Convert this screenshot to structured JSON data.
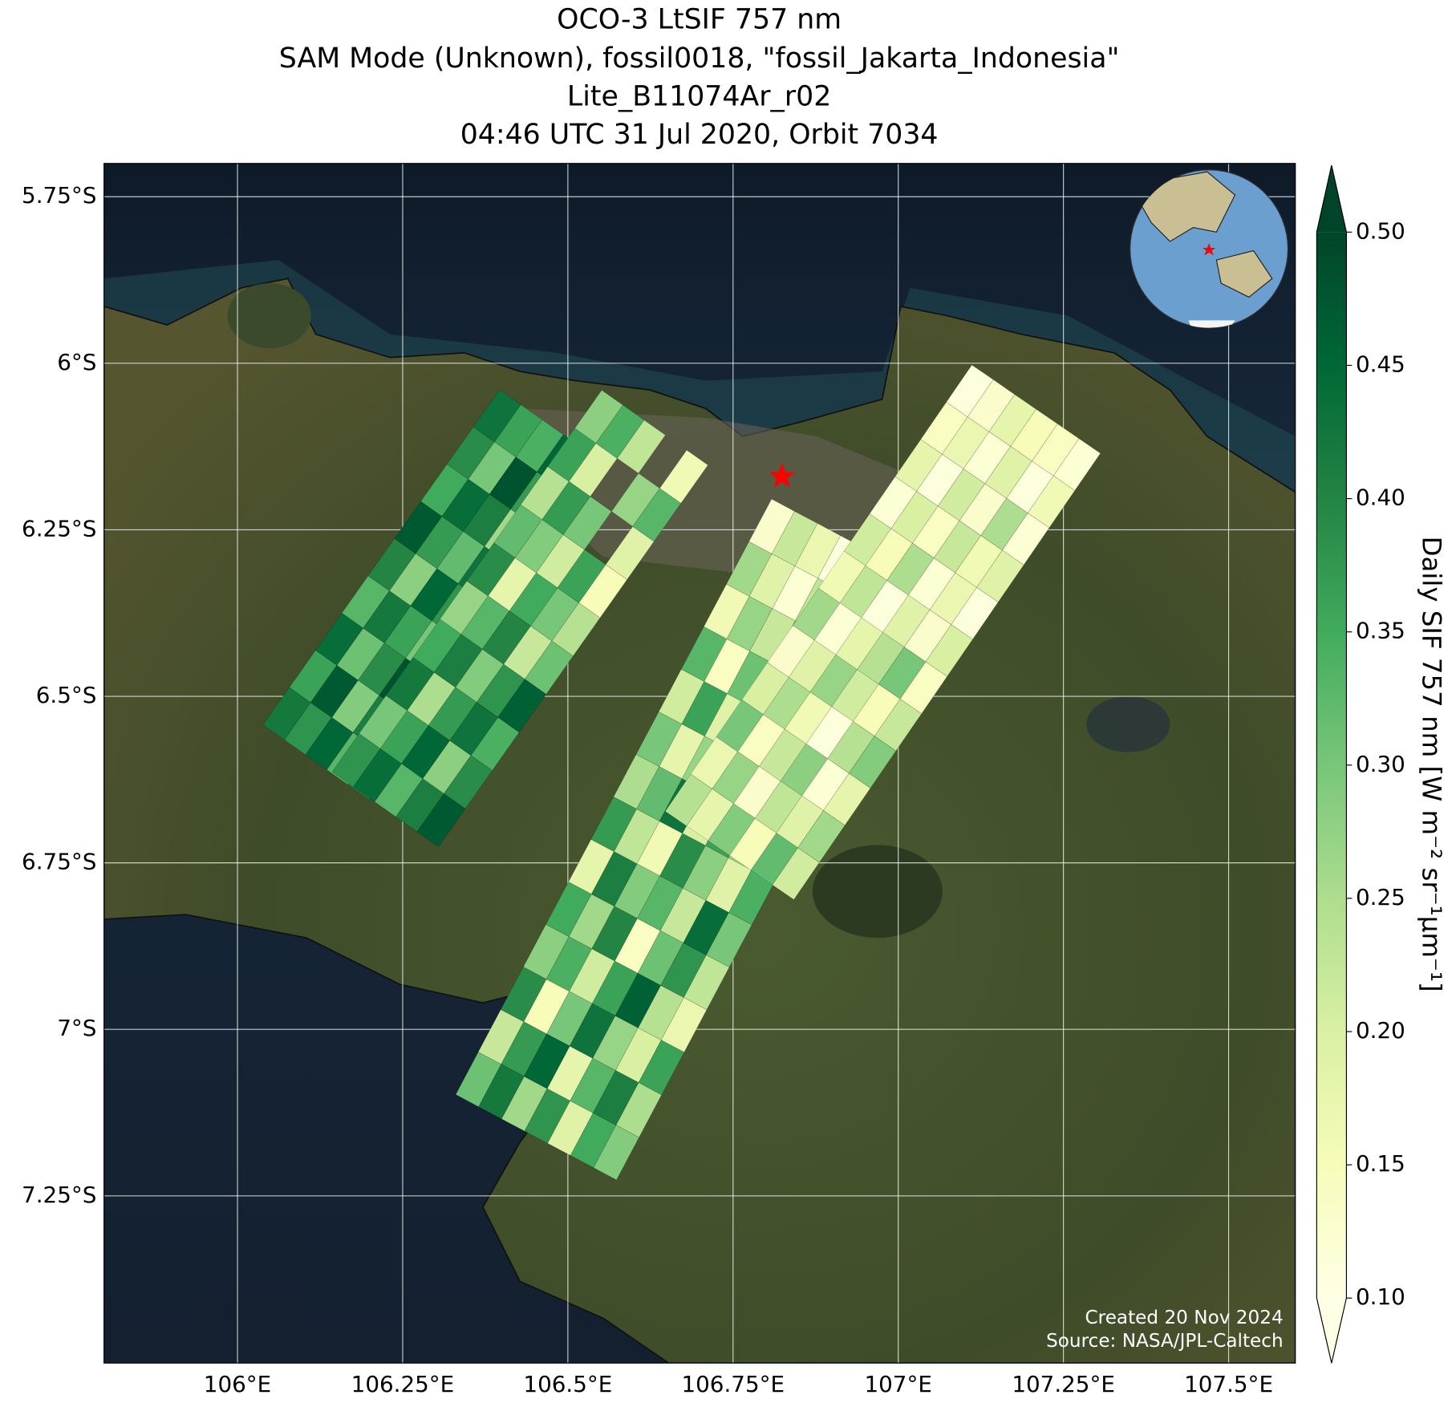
{
  "chart_data": {
    "type": "map",
    "title_lines": [
      "OCO-3 LtSIF 757 nm",
      "SAM Mode (Unknown), fossil0018, \"fossil_Jakarta_Indonesia\"",
      "Lite_B11074Ar_r02",
      "04:46 UTC 31 Jul 2020, Orbit 7034"
    ],
    "xlim": [
      105.798,
      107.601
    ],
    "ylim": [
      -7.501,
      -5.7
    ],
    "grid": true,
    "xticks": [
      {
        "value": 106,
        "label": "106°E"
      },
      {
        "value": 106.25,
        "label": "106.25°E"
      },
      {
        "value": 106.5,
        "label": "106.5°E"
      },
      {
        "value": 106.75,
        "label": "106.75°E"
      },
      {
        "value": 107,
        "label": "107°E"
      },
      {
        "value": 107.25,
        "label": "107.25°E"
      },
      {
        "value": 107.5,
        "label": "107.5°E"
      }
    ],
    "yticks": [
      {
        "value": -5.75,
        "label": "5.75°S"
      },
      {
        "value": -6,
        "label": "6°S"
      },
      {
        "value": -6.25,
        "label": "6.25°S"
      },
      {
        "value": -6.5,
        "label": "6.5°S"
      },
      {
        "value": -6.75,
        "label": "6.75°S"
      },
      {
        "value": -7,
        "label": "7°S"
      },
      {
        "value": -7.25,
        "label": "7.25°S"
      }
    ],
    "colorbar": {
      "label": "Daily SIF 757 nm [W m⁻² sr⁻¹µm⁻¹]",
      "clim": [
        0.1,
        0.5
      ],
      "extend": "both",
      "colors": [
        "#ffffe5",
        "#f7fcb9",
        "#d9f0a3",
        "#addd8e",
        "#78c679",
        "#41ab5d",
        "#238443",
        "#006837",
        "#004529"
      ],
      "ticks": [
        {
          "value": 0.1,
          "label": "0.10"
        },
        0.15,
        {
          "value": 0.2,
          "label": "0.20"
        },
        0.25,
        {
          "value": 0.3,
          "label": "0.30"
        },
        0.35,
        {
          "value": 0.4,
          "label": "0.40"
        },
        0.45,
        {
          "value": 0.5,
          "label": "0.50"
        }
      ]
    },
    "site": {
      "lon": 106.824,
      "lat": -6.17,
      "color": "#ff0000"
    },
    "swaths": [
      {
        "start": [
          106.139,
          -6.571
        ],
        "end": [
          106.497,
          -6.068
        ],
        "values": [
          [
            0.42,
            0.38,
            0.45,
            0.33,
            0.4
          ],
          [
            0.36,
            0.47,
            0.29,
            0.41,
            0.35
          ],
          [
            0.44,
            0.31,
            0.39,
            0.48,
            0.27
          ],
          [
            0.33,
            0.42,
            0.36,
            0.3,
            0.46
          ],
          [
            0.4,
            0.28,
            0.45,
            0.38,
            0.34
          ],
          [
            0.47,
            0.37,
            0.32,
            0.43,
            0.39
          ],
          [
            0.35,
            0.44,
            0.41,
            0.26,
            0.42
          ],
          [
            0.39,
            0.3,
            0.48,
            0.37,
            0.33
          ],
          [
            0.43,
            0.36,
            0.34,
            0.45,
            0.29
          ]
        ]
      },
      {
        "start": [
          106.244,
          -6.641
        ],
        "end": [
          106.652,
          -6.068
        ],
        "values": [
          [
            0.38,
            0.44,
            0.33,
            0.41,
            0.47
          ],
          [
            0.3,
            0.36,
            0.45,
            0.28,
            0.39
          ],
          [
            0.42,
            0.25,
            0.37,
            0.43,
            0.34
          ],
          [
            0.35,
            0.41,
            0.29,
            0.38,
            0.46
          ],
          [
            0.27,
            0.33,
            0.4,
            0.22,
            0.31
          ],
          [
            0.39,
            0.18,
            0.35,
            0.3,
            0.24
          ],
          [
            0.32,
            0.29,
            0.21,
            0.36,
            0.15
          ],
          [
            0.24,
            0.37,
            0.3,
            null,
            0.19
          ],
          [
            0.36,
            0.2,
            null,
            0.27,
            0.33
          ],
          [
            0.28,
            0.34,
            0.23,
            null,
            0.16
          ]
        ]
      },
      {
        "start": [
          106.469,
          -7.13
        ],
        "end": [
          106.947,
          -6.236
        ],
        "values": [
          [
            0.31,
            0.42,
            0.26,
            0.38,
            0.19,
            0.35,
            0.29
          ],
          [
            0.22,
            0.37,
            0.45,
            0.18,
            0.33,
            0.41,
            0.25
          ],
          [
            0.39,
            0.15,
            0.3,
            0.43,
            0.27,
            0.2,
            0.36
          ],
          [
            0.28,
            0.34,
            0.21,
            0.36,
            0.46,
            0.24,
            0.17
          ],
          [
            0.35,
            0.26,
            0.4,
            0.14,
            0.31,
            0.38,
            0.23
          ],
          [
            0.18,
            0.41,
            0.29,
            0.33,
            0.22,
            0.44,
            0.3
          ],
          [
            0.37,
            0.23,
            0.16,
            0.39,
            0.28,
            0.19,
            0.34
          ],
          [
            0.25,
            0.32,
            0.43,
            0.2,
            0.36,
            0.27,
            0.13
          ],
          [
            0.3,
            0.18,
            0.27,
            0.35,
            0.15,
            0.32,
            0.24
          ],
          [
            0.21,
            0.36,
            0.19,
            0.26,
            0.3,
            0.12,
            0.28
          ],
          [
            0.33,
            0.14,
            0.31,
            0.17,
            0.24,
            0.29,
            0.16
          ],
          [
            0.16,
            0.27,
            0.22,
            0.29,
            0.13,
            0.21,
            0.25
          ],
          [
            0.26,
            0.19,
            0.12,
            0.23,
            0.18,
            0.14,
            0.2
          ],
          [
            0.13,
            0.22,
            0.17,
            0.11,
            0.2,
            null,
            0.15
          ]
        ]
      },
      {
        "start": [
          106.764,
          -6.711
        ],
        "end": [
          107.228,
          -6.041
        ],
        "values": [
          [
            0.24,
            0.18,
            0.29,
            0.15,
            0.32,
            0.21
          ],
          [
            0.17,
            0.27,
            0.13,
            0.23,
            0.19,
            0.26
          ],
          [
            0.3,
            0.14,
            0.22,
            0.28,
            0.12,
            0.18
          ],
          [
            0.2,
            0.25,
            0.16,
            0.11,
            0.24,
            0.29
          ],
          [
            0.13,
            0.19,
            0.27,
            0.21,
            0.15,
            0.22
          ],
          [
            0.26,
            0.12,
            0.18,
            0.24,
            0.3,
            0.14
          ],
          [
            0.16,
            0.23,
            0.11,
            0.19,
            0.13,
            0.2
          ],
          [
            0.21,
            0.15,
            0.25,
            0.12,
            0.17,
            0.11
          ],
          [
            0.12,
            0.2,
            0.14,
            0.22,
            0.16,
            0.19
          ],
          [
            0.18,
            0.11,
            0.21,
            0.13,
            0.25,
            0.12
          ],
          [
            0.14,
            0.17,
            0.12,
            0.19,
            0.11,
            0.16
          ],
          [
            0.11,
            0.13,
            0.18,
            0.15,
            0.14,
            0.12
          ]
        ]
      }
    ],
    "credits": [
      "Created 20 Nov 2024",
      "Source: NASA/JPL-Caltech"
    ]
  }
}
